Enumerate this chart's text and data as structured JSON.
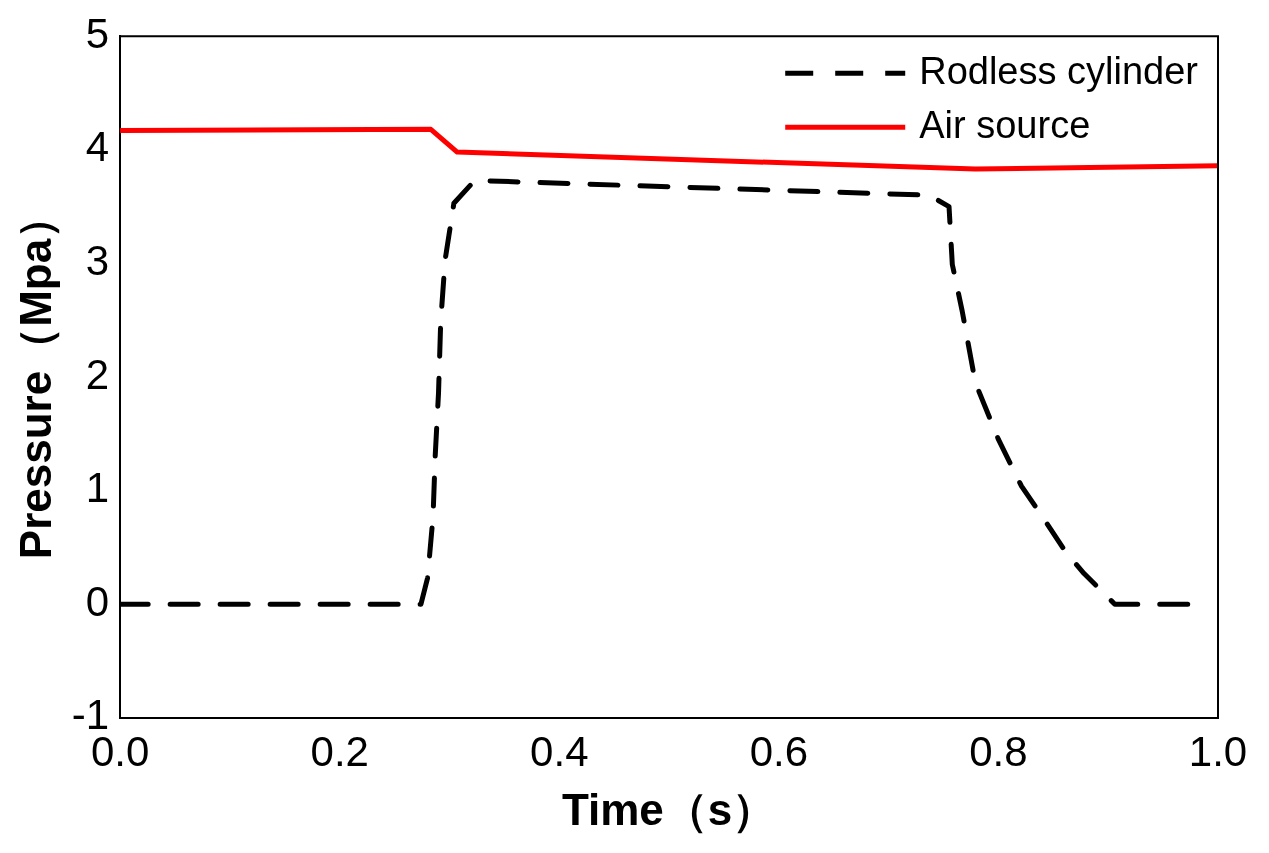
{
  "chart_data": {
    "type": "line",
    "xlabel": "Time（s）",
    "ylabel": "Pressure（Mpa）",
    "xlim": [
      0,
      1
    ],
    "xticks": [
      {
        "value": 0,
        "label": "0.0"
      },
      {
        "value": 0.2,
        "label": "0.2"
      },
      {
        "value": 0.4,
        "label": "0.4"
      },
      {
        "value": 0.6,
        "label": "0.6"
      },
      {
        "value": 0.8,
        "label": "0.8"
      },
      {
        "value": 1,
        "label": "1.0"
      }
    ],
    "ylim": [
      -1,
      5
    ],
    "yticks": [
      -1,
      0,
      1,
      2,
      3,
      4,
      5
    ],
    "grid": false,
    "legend": "top right",
    "marker": "none",
    "series": [
      {
        "name": "Rodless cylinder",
        "color": "#000000",
        "line_style": "dashed",
        "x": [
          0,
          0.274,
          0.28,
          0.285,
          0.287,
          0.29,
          0.292,
          0.296,
          0.304,
          0.323,
          0.737,
          0.755,
          0.758,
          0.767,
          0.779,
          0.8,
          0.821,
          0.84,
          0.862,
          0.878,
          0.906,
          0.975
        ],
        "values": [
          0,
          0,
          0.23,
          0.77,
          1.31,
          1.86,
          2.49,
          3.03,
          3.53,
          3.73,
          3.6,
          3.5,
          2.99,
          2.58,
          1.95,
          1.45,
          1.04,
          0.77,
          0.45,
          0.27,
          0,
          0
        ]
      },
      {
        "name": "Air source",
        "color": "#ff0000",
        "line_style": "solid",
        "x": [
          0,
          0.283,
          0.307,
          0.779,
          1.0
        ],
        "values": [
          4.17,
          4.18,
          3.98,
          3.83,
          3.86
        ]
      }
    ]
  }
}
